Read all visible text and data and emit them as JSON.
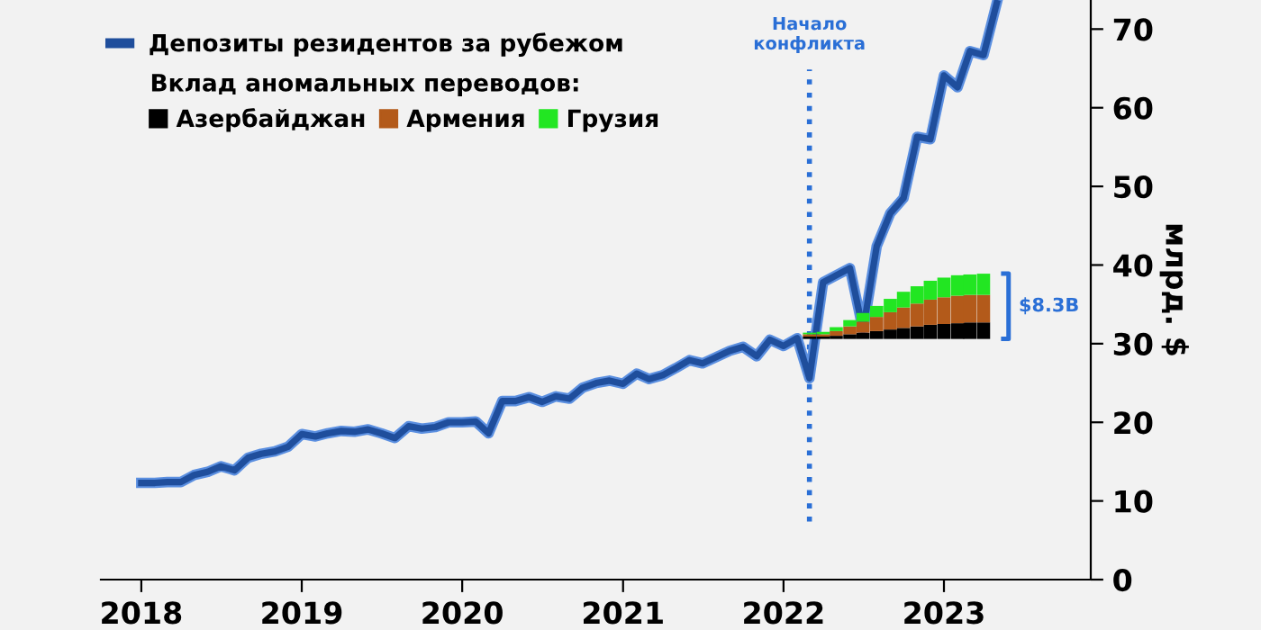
{
  "chart_data": {
    "type": "line",
    "ylabel": "млрд. $",
    "legend_title": "Вклад аномальных переводов:",
    "xlim": [
      "2017-10",
      "2023-12"
    ],
    "xticks": [
      "2018",
      "2019",
      "2020",
      "2021",
      "2022",
      "2023"
    ],
    "ylim": [
      0,
      73.7
    ],
    "yticks": [
      0,
      10,
      20,
      30,
      40,
      50,
      60,
      70
    ],
    "legend": "top left",
    "grid": false,
    "ref_lines": [
      {
        "axis": "x",
        "value": "2022-03",
        "label": "Начало\nконфликта",
        "color": "#2a6fd6",
        "line_style": "dotted"
      }
    ],
    "annotations": [
      "$8.3B"
    ],
    "series": [
      {
        "name": "Депозиты резидентов за рубежом",
        "color": "#1f4e9c",
        "x": [
          "2018-01",
          "2018-02",
          "2018-03",
          "2018-04",
          "2018-05",
          "2018-06",
          "2018-07",
          "2018-08",
          "2018-09",
          "2018-10",
          "2018-11",
          "2018-12",
          "2019-01",
          "2019-02",
          "2019-03",
          "2019-04",
          "2019-05",
          "2019-06",
          "2019-07",
          "2019-08",
          "2019-09",
          "2019-10",
          "2019-11",
          "2019-12",
          "2020-01",
          "2020-02",
          "2020-03",
          "2020-04",
          "2020-05",
          "2020-06",
          "2020-07",
          "2020-08",
          "2020-09",
          "2020-10",
          "2020-11",
          "2020-12",
          "2021-01",
          "2021-02",
          "2021-03",
          "2021-04",
          "2021-05",
          "2021-06",
          "2021-07",
          "2021-08",
          "2021-09",
          "2021-10",
          "2021-11",
          "2021-12",
          "2022-01",
          "2022-02",
          "2022-03",
          "2022-04",
          "2022-05",
          "2022-06",
          "2022-07",
          "2022-08",
          "2022-09",
          "2022-10",
          "2022-11",
          "2022-12",
          "2023-01",
          "2023-02",
          "2023-03",
          "2023-04",
          "2023-05"
        ],
        "values": [
          12.3,
          12.3,
          12.4,
          12.4,
          13.3,
          13.7,
          14.4,
          13.9,
          15.5,
          16.0,
          16.3,
          16.9,
          18.5,
          18.2,
          18.6,
          18.9,
          18.8,
          19.1,
          18.6,
          18.0,
          19.5,
          19.2,
          19.4,
          20.0,
          20.0,
          20.1,
          18.6,
          22.7,
          22.7,
          23.2,
          22.6,
          23.3,
          23.0,
          24.4,
          25.0,
          25.3,
          24.9,
          26.2,
          25.5,
          26.0,
          26.9,
          27.9,
          27.5,
          28.3,
          29.1,
          29.6,
          28.4,
          30.5,
          29.7,
          30.7,
          25.6,
          37.8,
          38.7,
          39.6,
          31.7,
          42.4,
          46.6,
          48.5,
          56.3,
          56.0,
          64.1,
          62.6,
          67.2,
          66.7,
          73.3
        ]
      },
      {
        "name": "Азербайджан",
        "type": "bar",
        "color": "#000000",
        "x": [
          "2022-03",
          "2022-04",
          "2022-05",
          "2022-06",
          "2022-07",
          "2022-08",
          "2022-09",
          "2022-10",
          "2022-11",
          "2022-12",
          "2023-01",
          "2023-02",
          "2023-03",
          "2023-04"
        ],
        "base": [
          30.6,
          30.6,
          30.6,
          30.6,
          30.6,
          30.6,
          30.6,
          30.6,
          30.6,
          30.6,
          30.6,
          30.6,
          30.6,
          30.6
        ],
        "values": [
          0.3,
          0.3,
          0.4,
          0.6,
          0.8,
          1.0,
          1.2,
          1.4,
          1.6,
          1.8,
          1.9,
          2.0,
          2.1,
          2.1
        ]
      },
      {
        "name": "Армения",
        "type": "bar",
        "color": "#b35a1a",
        "x": [
          "2022-03",
          "2022-04",
          "2022-05",
          "2022-06",
          "2022-07",
          "2022-08",
          "2022-09",
          "2022-10",
          "2022-11",
          "2022-12",
          "2023-01",
          "2023-02",
          "2023-03",
          "2023-04"
        ],
        "base": [
          30.9,
          30.9,
          31.0,
          31.2,
          31.4,
          31.6,
          31.8,
          32.0,
          32.2,
          32.4,
          32.5,
          32.6,
          32.7,
          32.7
        ],
        "values": [
          0.3,
          0.3,
          0.6,
          1.0,
          1.4,
          1.8,
          2.2,
          2.6,
          2.9,
          3.2,
          3.4,
          3.5,
          3.5,
          3.5
        ]
      },
      {
        "name": "Грузия",
        "type": "bar",
        "color": "#22e622",
        "x": [
          "2022-03",
          "2022-04",
          "2022-05",
          "2022-06",
          "2022-07",
          "2022-08",
          "2022-09",
          "2022-10",
          "2022-11",
          "2022-12",
          "2023-01",
          "2023-02",
          "2023-03",
          "2023-04"
        ],
        "base": [
          31.2,
          31.2,
          31.6,
          32.2,
          32.8,
          33.4,
          34.0,
          34.6,
          35.1,
          35.6,
          35.9,
          36.1,
          36.2,
          36.2
        ],
        "values": [
          0.2,
          0.3,
          0.5,
          0.8,
          1.1,
          1.4,
          1.7,
          2.0,
          2.2,
          2.4,
          2.5,
          2.6,
          2.6,
          2.7
        ]
      }
    ]
  }
}
